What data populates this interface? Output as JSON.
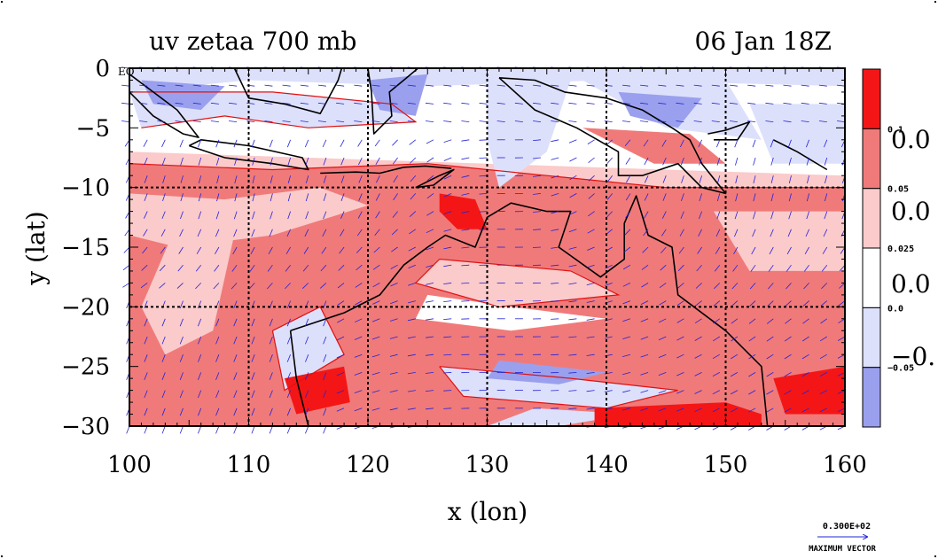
{
  "chart_data": {
    "type": "heatmap",
    "title": "uv zetaa 700 mb",
    "date_label": "06 Jan 18Z",
    "xlabel": "x (lon)",
    "ylabel": "y (lat)",
    "xlim": [
      100,
      160
    ],
    "ylim": [
      -30,
      0
    ],
    "x_ticks": [
      100,
      110,
      120,
      130,
      140,
      150,
      160
    ],
    "x_tick_labels": [
      "100",
      "110",
      "120",
      "130",
      "140",
      "150",
      "160"
    ],
    "y_ticks": [
      0,
      -5,
      -10,
      -15,
      -20,
      -25,
      -30
    ],
    "y_tick_labels": [
      "0",
      "−5",
      "−10",
      "−15",
      "−20",
      "−25",
      "−30"
    ],
    "corner_label": "EQ",
    "grid": true,
    "grid_x": [
      110,
      120,
      130,
      140,
      150
    ],
    "grid_y": [
      -10,
      -20
    ],
    "colorbar": {
      "levels": [
        -0.05,
        0.0,
        0.025,
        0.05,
        0.1
      ],
      "small_labels": [
        "0.1",
        "0.05",
        "0.025",
        "0.0",
        "−0.05"
      ],
      "large_labels": [
        "0.0",
        "0.0",
        "0.0",
        "−0."
      ],
      "colors": [
        "#9aa0ee",
        "#dde0fb",
        "#ffffff",
        "#fbcaca",
        "#f07a7a",
        "#f41616"
      ]
    },
    "shading_colors": {
      "neg_strong": "#9aa0ee",
      "neg_weak": "#dde0fb",
      "zero": "#ffffff",
      "pos_weak": "#fbcaca",
      "pos_mid": "#f07a7a",
      "pos_strong": "#f41616"
    },
    "vector_color": "#2323d8",
    "coastline_color": "#000000",
    "max_vector": {
      "value": "0.300E+02",
      "label": "MAXIMUM VECTOR"
    }
  }
}
